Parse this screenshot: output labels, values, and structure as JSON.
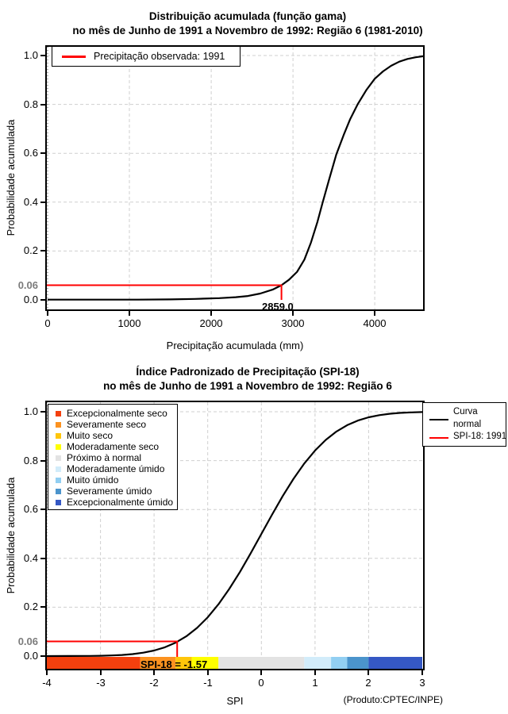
{
  "footer_note": "(Produto:CPTEC/INPE)",
  "chart_data": [
    {
      "type": "line",
      "title_line1": "Distribuição acumulada (função gama)",
      "title_line2": "no mês de Junho de 1991 a Novembro de 1992: Região 6 (1981-2010)",
      "xlabel": "Precipitação acumulada (mm)",
      "ylabel": "Probabilidade acumulada",
      "xlim": [
        0,
        4610
      ],
      "ylim": [
        0,
        1
      ],
      "grid": true,
      "legend_position": "top-left",
      "xticks": [
        0,
        1000,
        2000,
        3000,
        4000
      ],
      "xtick_labels": [
        "0",
        "1000",
        "2000",
        "3000",
        "4000"
      ],
      "yticks": [
        0,
        0.2,
        0.4,
        0.6,
        0.8,
        1
      ],
      "ytick_labels": [
        "0.0",
        "0.2",
        "0.4",
        "0.6",
        "0.8",
        "1.0"
      ],
      "legend_items": [
        {
          "label": "Precipitação observada: 1991",
          "color": "#ff0000"
        }
      ],
      "threshold": {
        "y": 0.06,
        "y_label": "0.06",
        "x": 2859,
        "x_label": "2859.0",
        "color": "#ff0000"
      },
      "series": [
        {
          "name": "Distribuição acumulada (função gama)",
          "color": "#000000",
          "points": [
            [
              0,
              0.001
            ],
            [
              600,
              0.001
            ],
            [
              1100,
              0.001
            ],
            [
              1500,
              0.002
            ],
            [
              1800,
              0.004
            ],
            [
              2100,
              0.007
            ],
            [
              2300,
              0.011
            ],
            [
              2450,
              0.016
            ],
            [
              2600,
              0.026
            ],
            [
              2750,
              0.042
            ],
            [
              2859,
              0.06
            ],
            [
              2950,
              0.082
            ],
            [
              3050,
              0.115
            ],
            [
              3140,
              0.165
            ],
            [
              3220,
              0.235
            ],
            [
              3300,
              0.32
            ],
            [
              3360,
              0.395
            ],
            [
              3440,
              0.49
            ],
            [
              3530,
              0.595
            ],
            [
              3620,
              0.675
            ],
            [
              3700,
              0.74
            ],
            [
              3790,
              0.8
            ],
            [
              3900,
              0.86
            ],
            [
              4000,
              0.905
            ],
            [
              4100,
              0.935
            ],
            [
              4200,
              0.958
            ],
            [
              4300,
              0.975
            ],
            [
              4400,
              0.986
            ],
            [
              4500,
              0.993
            ],
            [
              4610,
              0.998
            ]
          ]
        }
      ]
    },
    {
      "type": "line",
      "title_line1": "Índice Padronizado de Precipitação (SPI-18)",
      "title_line2": "no mês de Junho de 1991 a Novembro de 1992: Região 6",
      "xlabel": "SPI",
      "ylabel": "Probabilidade acumulada",
      "xlim": [
        -4,
        3
      ],
      "ylim": [
        0,
        1
      ],
      "grid": true,
      "xticks": [
        -4,
        -3,
        -2,
        -1,
        0,
        1,
        2,
        3
      ],
      "xtick_labels": [
        "-4",
        "-3",
        "-2",
        "-1",
        "0",
        "1",
        "2",
        "3"
      ],
      "yticks": [
        0,
        0.2,
        0.4,
        0.6,
        0.8,
        1
      ],
      "ytick_labels": [
        "0.0",
        "0.2",
        "0.4",
        "0.6",
        "0.8",
        "1.0"
      ],
      "legend_classes": [
        {
          "label": "Excepcionalmente seco",
          "color": "#f4400e"
        },
        {
          "label": "Severamente seco",
          "color": "#fc9220"
        },
        {
          "label": "Muito seco",
          "color": "#ffc60a"
        },
        {
          "label": "Moderadamente seco",
          "color": "#ffff00"
        },
        {
          "label": "Próximo à normal",
          "color": "#e3e3e3"
        },
        {
          "label": "Moderadamente úmido",
          "color": "#d2ecfa"
        },
        {
          "label": "Muito úmido",
          "color": "#92cff2"
        },
        {
          "label": "Severamente úmido",
          "color": "#4b94cc"
        },
        {
          "label": "Excepcionalmente úmido",
          "color": "#3558c4"
        }
      ],
      "legend_lines": [
        {
          "label_line1": "Curva",
          "label_line2": "normal",
          "color": "#000000"
        },
        {
          "label_line1": "SPI-18: 1991",
          "label_line2": "",
          "color": "#ff0000"
        }
      ],
      "bar_segments": [
        {
          "from": -4,
          "to": -2.26,
          "color": "#f4400e"
        },
        {
          "from": -2.26,
          "to": -1.6,
          "color": "#fc9220"
        },
        {
          "from": -1.6,
          "to": -1.3,
          "color": "#ffc60a"
        },
        {
          "from": -1.3,
          "to": -0.8,
          "color": "#ffff00"
        },
        {
          "from": -0.8,
          "to": 0.8,
          "color": "#e3e3e3"
        },
        {
          "from": 0.8,
          "to": 1.3,
          "color": "#d2ecfa"
        },
        {
          "from": 1.3,
          "to": 1.6,
          "color": "#92cff2"
        },
        {
          "from": 1.6,
          "to": 2.0,
          "color": "#4b94cc"
        },
        {
          "from": 2.0,
          "to": 3.0,
          "color": "#3558c4"
        }
      ],
      "threshold": {
        "y": 0.06,
        "y_label": "0.06",
        "x": -1.57,
        "x_label": "SPI-18 = -1.57",
        "color": "#ff0000"
      },
      "series": [
        {
          "name": "Curva normal",
          "color": "#000000",
          "points": [
            [
              -4,
              0.0001
            ],
            [
              -3.6,
              0.0002
            ],
            [
              -3.2,
              0.0007
            ],
            [
              -3,
              0.0013
            ],
            [
              -2.8,
              0.0026
            ],
            [
              -2.6,
              0.0047
            ],
            [
              -2.4,
              0.0082
            ],
            [
              -2.2,
              0.0139
            ],
            [
              -2,
              0.0228
            ],
            [
              -1.8,
              0.0359
            ],
            [
              -1.6,
              0.0548
            ],
            [
              -1.4,
              0.0808
            ],
            [
              -1.2,
              0.1151
            ],
            [
              -1,
              0.1587
            ],
            [
              -0.8,
              0.2119
            ],
            [
              -0.6,
              0.2743
            ],
            [
              -0.4,
              0.3446
            ],
            [
              -0.2,
              0.4207
            ],
            [
              0,
              0.5
            ],
            [
              0.2,
              0.5793
            ],
            [
              0.4,
              0.6554
            ],
            [
              0.6,
              0.7257
            ],
            [
              0.8,
              0.7881
            ],
            [
              1,
              0.8413
            ],
            [
              1.2,
              0.8849
            ],
            [
              1.4,
              0.9192
            ],
            [
              1.6,
              0.9452
            ],
            [
              1.8,
              0.9641
            ],
            [
              2,
              0.9772
            ],
            [
              2.2,
              0.9861
            ],
            [
              2.4,
              0.9918
            ],
            [
              2.6,
              0.9953
            ],
            [
              2.8,
              0.9974
            ],
            [
              3,
              0.9987
            ]
          ]
        }
      ]
    }
  ]
}
